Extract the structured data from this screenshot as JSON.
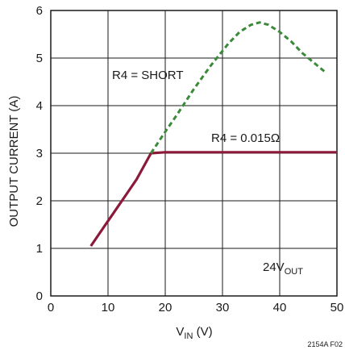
{
  "chart_data": {
    "type": "line",
    "xlabel": {
      "main": "V",
      "sub": "IN",
      "unit": " (V)"
    },
    "ylabel": "OUTPUT CURRENT (A)",
    "xlim": [
      0,
      50
    ],
    "ylim": [
      0,
      6
    ],
    "xticks": [
      "0",
      "10",
      "20",
      "30",
      "40",
      "50"
    ],
    "yticks": [
      "0",
      "1",
      "2",
      "3",
      "4",
      "5",
      "6"
    ],
    "grid": true,
    "series": [
      {
        "name": "R4 = 0.015Ω",
        "style": "solid",
        "color": "#8b1a3a",
        "points": [
          [
            7,
            1.05
          ],
          [
            9,
            1.4
          ],
          [
            11,
            1.75
          ],
          [
            13,
            2.1
          ],
          [
            15,
            2.45
          ],
          [
            17.5,
            3.0
          ],
          [
            20,
            3.02
          ],
          [
            30,
            3.02
          ],
          [
            40,
            3.02
          ],
          [
            50,
            3.02
          ]
        ]
      },
      {
        "name": "R4 = SHORT",
        "style": "dashed",
        "color": "#3a8a3a",
        "points": [
          [
            17.5,
            3.0
          ],
          [
            20,
            3.45
          ],
          [
            22,
            3.8
          ],
          [
            25,
            4.35
          ],
          [
            28,
            4.85
          ],
          [
            31,
            5.3
          ],
          [
            33,
            5.55
          ],
          [
            35,
            5.7
          ],
          [
            36.5,
            5.75
          ],
          [
            38,
            5.7
          ],
          [
            40,
            5.55
          ],
          [
            42,
            5.35
          ],
          [
            44,
            5.1
          ],
          [
            46,
            4.9
          ],
          [
            48,
            4.7
          ]
        ]
      }
    ],
    "annotations": {
      "short_label": "R4 = SHORT",
      "res_label_prefix": "R4 = 0.015",
      "res_label_symbol": "Ω",
      "vout_main": "24V",
      "vout_sub": "OUT"
    },
    "figure_id": "2154A F02"
  }
}
